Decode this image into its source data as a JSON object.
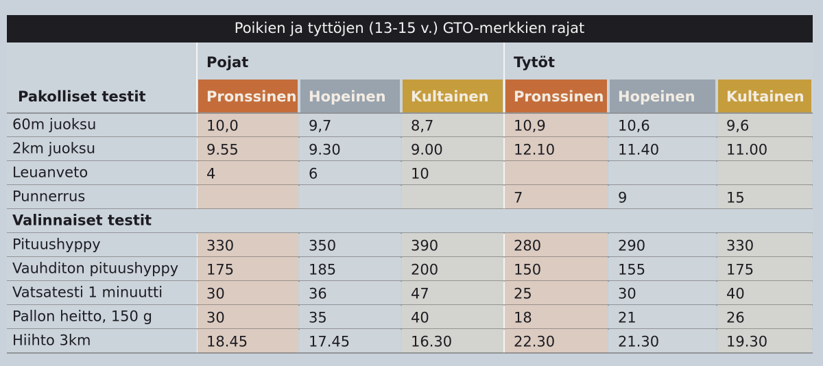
{
  "title": "Poikien ja tyttöjen (13-15 v.) GTO-merkkien rajat",
  "groups": [
    "Pojat",
    "Tytöt"
  ],
  "levels": [
    "Pronssinen",
    "Hopeinen",
    "Kultainen",
    "Pronssinen",
    "Hopeinen",
    "Kultainen"
  ],
  "sections": [
    {
      "heading": "Pakolliset testit",
      "rows": [
        {
          "label": "60m juoksu",
          "cells": [
            "10,0",
            "9,7",
            "8,7",
            "10,9",
            "10,6",
            "9,6"
          ]
        },
        {
          "label": "2km juoksu",
          "cells": [
            "9.55",
            "9.30",
            "9.00",
            "12.10",
            "11.40",
            "11.00"
          ]
        },
        {
          "label": "Leuanveto",
          "cells": [
            "4",
            "6",
            "10",
            null,
            null,
            null
          ]
        },
        {
          "label": "Punnerrus",
          "cells": [
            null,
            null,
            null,
            "7",
            "9",
            "15"
          ]
        }
      ]
    },
    {
      "heading": "Valinnaiset testit",
      "rows": [
        {
          "label": "Pituushyppy",
          "cells": [
            "330",
            "350",
            "390",
            "280",
            "290",
            "330"
          ]
        },
        {
          "label": "Vauhditon pituushyppy",
          "cells": [
            "175",
            "185",
            "200",
            "150",
            "155",
            "175"
          ]
        },
        {
          "label": "Vatsatesti 1 minuutti",
          "cells": [
            "30",
            "36",
            "47",
            "25",
            "30",
            "40"
          ]
        },
        {
          "label": "Pallon heitto, 150 g",
          "cells": [
            "30",
            "35",
            "40",
            "18",
            "21",
            "26"
          ]
        },
        {
          "label": "Hiihto 3km",
          "cells": [
            "18.45",
            "17.45",
            "16.30",
            "22.30",
            "21.30",
            "19.30"
          ]
        }
      ]
    }
  ]
}
